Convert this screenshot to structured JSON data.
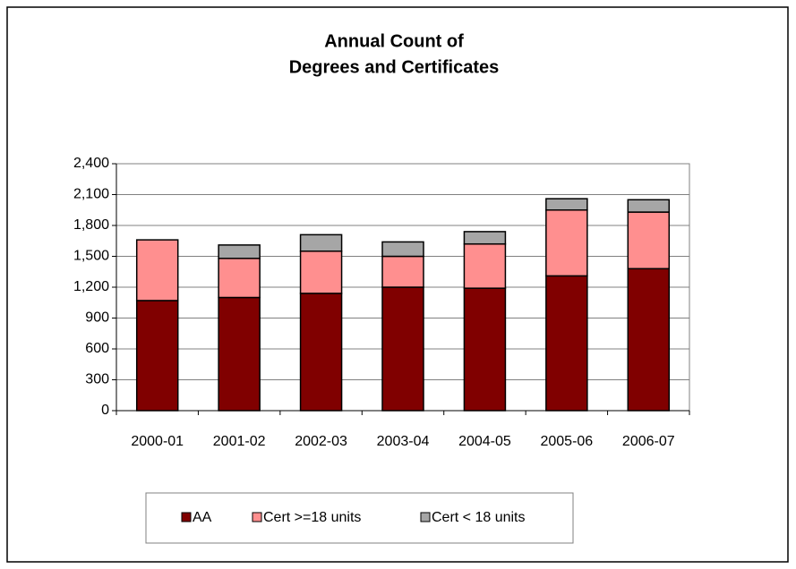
{
  "chart_data": {
    "type": "stacked_bar",
    "title": [
      "Annual Count of",
      "Degrees and Certificates"
    ],
    "categories": [
      "2000-01",
      "2001-02",
      "2002-03",
      "2003-04",
      "2004-05",
      "2005-06",
      "2006-07"
    ],
    "series": [
      {
        "name": "AA",
        "color": "#800000",
        "values": [
          1070,
          1100,
          1140,
          1200,
          1190,
          1310,
          1380
        ]
      },
      {
        "name": "Cert >=18 units",
        "color": "#ff8f8f",
        "values": [
          590,
          380,
          410,
          300,
          430,
          640,
          550
        ]
      },
      {
        "name": "Cert < 18 units",
        "color": "#a6a6a6",
        "values": [
          0,
          130,
          160,
          140,
          120,
          110,
          120
        ]
      }
    ],
    "ylim": [
      0,
      2400
    ],
    "yticks": [
      0,
      300,
      600,
      900,
      {
        "value": 1200,
        "label": "1,200"
      },
      {
        "value": 1500,
        "label": "1,500"
      },
      {
        "value": 1800,
        "label": "1,800"
      },
      {
        "value": 2100,
        "label": "2,100"
      },
      {
        "value": 2400,
        "label": "2,400"
      }
    ],
    "grid": true,
    "legend": "bottom"
  }
}
